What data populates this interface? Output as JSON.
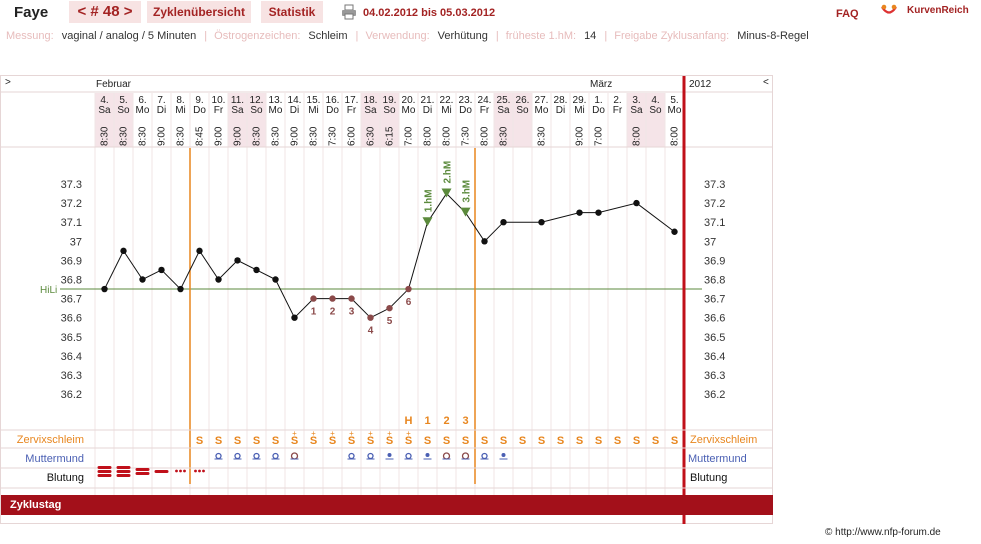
{
  "header": {
    "name": "Faye",
    "cycle_label": "< # 48 >",
    "overview_button": "Zyklenübersicht",
    "stats_button": "Statistik",
    "date_range": "04.02.2012 bis 05.03.2012",
    "faq": "FAQ",
    "logo_text": "KurvenReich"
  },
  "settings": {
    "measure_label": "Messung:",
    "measure_value": "vaginal / analog / 5 Minuten",
    "estrogen_label": "Östrogenzeichen:",
    "estrogen_value": "Schleim",
    "usage_label": "Verwendung:",
    "usage_value": "Verhütung",
    "earliest_label": "früheste 1.hM:",
    "earliest_value": "14",
    "release_label": "Freigabe Zyklusanfang:",
    "release_value": "Minus-8-Regel"
  },
  "nav": {
    "left": ">",
    "right": "<"
  },
  "months": {
    "feb": "Februar",
    "mar": "März",
    "year": "2012"
  },
  "days": [
    {
      "d": "4.",
      "w": "Sa",
      "t": "8:30"
    },
    {
      "d": "5.",
      "w": "So",
      "t": "8:30"
    },
    {
      "d": "6.",
      "w": "Mo",
      "t": "8:30"
    },
    {
      "d": "7.",
      "w": "Di",
      "t": "9:00"
    },
    {
      "d": "8.",
      "w": "Mi",
      "t": "8:30"
    },
    {
      "d": "9.",
      "w": "Do",
      "t": "8:45"
    },
    {
      "d": "10.",
      "w": "Fr",
      "t": "9:00"
    },
    {
      "d": "11.",
      "w": "Sa",
      "t": "9:00"
    },
    {
      "d": "12.",
      "w": "So",
      "t": "8:30"
    },
    {
      "d": "13.",
      "w": "Mo",
      "t": "8:30"
    },
    {
      "d": "14.",
      "w": "Di",
      "t": "9:00"
    },
    {
      "d": "15.",
      "w": "Mi",
      "t": "8:30"
    },
    {
      "d": "16.",
      "w": "Do",
      "t": "7:30"
    },
    {
      "d": "17.",
      "w": "Fr",
      "t": "6:00"
    },
    {
      "d": "18.",
      "w": "Sa",
      "t": "6:30"
    },
    {
      "d": "19.",
      "w": "So",
      "t": "6:15"
    },
    {
      "d": "20.",
      "w": "Mo",
      "t": "7:00"
    },
    {
      "d": "21.",
      "w": "Di",
      "t": "8:00"
    },
    {
      "d": "22.",
      "w": "Mi",
      "t": "8:00"
    },
    {
      "d": "23.",
      "w": "Do",
      "t": "7:30"
    },
    {
      "d": "24.",
      "w": "Fr",
      "t": "8:00"
    },
    {
      "d": "25.",
      "w": "Sa",
      "t": "8:30"
    },
    {
      "d": "26.",
      "w": "So",
      "t": ""
    },
    {
      "d": "27.",
      "w": "Mo",
      "t": "8:30"
    },
    {
      "d": "28.",
      "w": "Di",
      "t": ""
    },
    {
      "d": "29.",
      "w": "Mi",
      "t": "9:00"
    },
    {
      "d": "1.",
      "w": "Do",
      "t": "7:00"
    },
    {
      "d": "2.",
      "w": "Fr",
      "t": ""
    },
    {
      "d": "3.",
      "w": "Sa",
      "t": "8:00"
    },
    {
      "d": "4.",
      "w": "So",
      "t": ""
    },
    {
      "d": "5.",
      "w": "Mo",
      "t": "8:00"
    }
  ],
  "chart_data": {
    "type": "line",
    "ylim": [
      36.2,
      37.3
    ],
    "y_ticks": [
      "37.3",
      "37.2",
      "37.1",
      "37",
      "36.9",
      "36.8",
      "36.7",
      "36.6",
      "36.5",
      "36.4",
      "36.3",
      "36.2"
    ],
    "x": [
      1,
      2,
      3,
      4,
      5,
      6,
      7,
      8,
      9,
      10,
      11,
      12,
      13,
      14,
      15,
      16,
      17,
      18,
      19,
      20,
      21,
      22,
      23,
      24,
      25,
      26,
      27,
      28,
      29,
      30,
      31
    ],
    "values": [
      36.75,
      36.95,
      36.8,
      36.85,
      36.75,
      36.95,
      36.8,
      36.9,
      36.85,
      36.8,
      36.6,
      36.7,
      36.7,
      36.7,
      36.6,
      36.65,
      36.75,
      37.1,
      37.25,
      37.15,
      37.0,
      37.1,
      null,
      37.1,
      null,
      37.15,
      37.15,
      null,
      37.2,
      null,
      37.05
    ],
    "hili_label": "HiLi",
    "hili_value": 36.75,
    "low_labels": [
      {
        "day": 12,
        "text": "1"
      },
      {
        "day": 13,
        "text": "2"
      },
      {
        "day": 14,
        "text": "3"
      },
      {
        "day": 15,
        "text": "4"
      },
      {
        "day": 16,
        "text": "5"
      },
      {
        "day": 17,
        "text": "6"
      }
    ],
    "high_labels": [
      {
        "day": 18,
        "text": "1.hM"
      },
      {
        "day": 19,
        "text": "2.hM"
      },
      {
        "day": 20,
        "text": "3.hM"
      }
    ],
    "vertical_lines": [
      {
        "day": 6,
        "color": "#e8861f"
      },
      {
        "day": 21,
        "color": "#e8861f"
      }
    ]
  },
  "peak_labels": [
    {
      "day": 17,
      "text": "H"
    },
    {
      "day": 18,
      "text": "1"
    },
    {
      "day": 19,
      "text": "2"
    },
    {
      "day": 20,
      "text": "3"
    }
  ],
  "rows": {
    "cervix": "Zervixschleim",
    "mumu": "Muttermund",
    "bleeding": "Blutung",
    "cycle_day": "Zyklustag"
  },
  "cervix_marks": [
    "",
    "",
    "",
    "",
    "",
    "S",
    "S",
    "S",
    "S",
    "S",
    "S",
    "S",
    "S",
    "S",
    "S",
    "S",
    "S",
    "S",
    "S",
    "S",
    "S",
    "S",
    "S",
    "S",
    "S",
    "S",
    "S",
    "S",
    "S",
    "S",
    "S"
  ],
  "cervix_plus": [
    11,
    12,
    13,
    14,
    15,
    16,
    17
  ],
  "colors": {
    "accent": "#a32323",
    "orange": "#e8861f",
    "green": "#5b8a3c",
    "dot": "#111111",
    "low": "#8b4a4a",
    "blue": "#4a5fb3"
  },
  "copyright": "© http://www.nfp-forum.de"
}
